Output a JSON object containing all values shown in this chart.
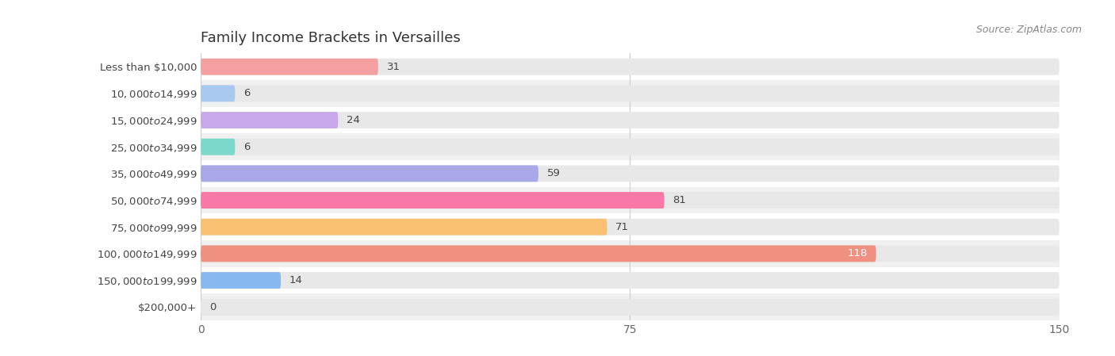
{
  "title": "Family Income Brackets in Versailles",
  "source": "Source: ZipAtlas.com",
  "categories": [
    "Less than $10,000",
    "$10,000 to $14,999",
    "$15,000 to $24,999",
    "$25,000 to $34,999",
    "$35,000 to $49,999",
    "$50,000 to $74,999",
    "$75,000 to $99,999",
    "$100,000 to $149,999",
    "$150,000 to $199,999",
    "$200,000+"
  ],
  "values": [
    31,
    6,
    24,
    6,
    59,
    81,
    71,
    118,
    14,
    0
  ],
  "colors": [
    "#F4A0A0",
    "#A8C8F0",
    "#C8A8E8",
    "#7DD8CC",
    "#A8A8E8",
    "#F878A8",
    "#F8C070",
    "#F09080",
    "#88B8F0",
    "#D4B0E0"
  ],
  "xlim": [
    0,
    150
  ],
  "xticks": [
    0,
    75,
    150
  ],
  "bar_bg_color": "#e8e8e8",
  "row_colors": [
    "#ffffff",
    "#f0f0f0"
  ],
  "title_fontsize": 13,
  "label_fontsize": 9.5,
  "value_fontsize": 9.5
}
